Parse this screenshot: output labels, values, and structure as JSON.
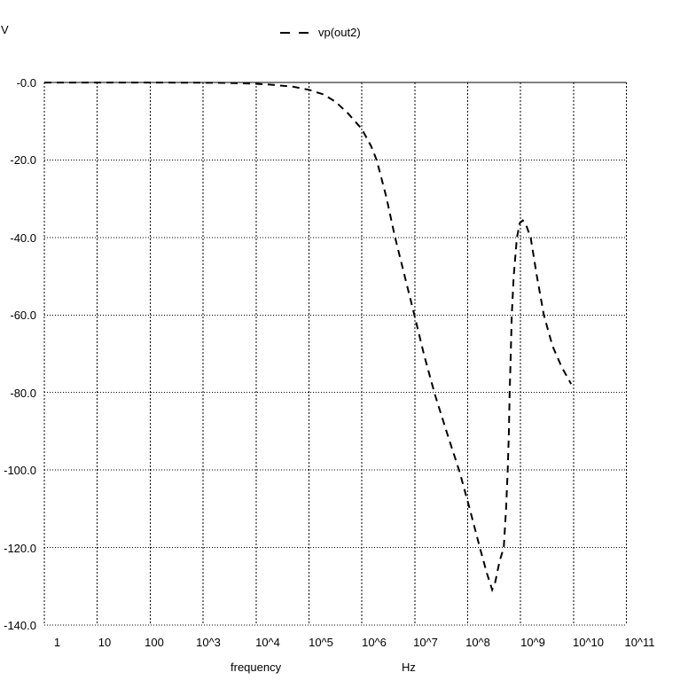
{
  "labels": {
    "y_unit": "V",
    "x_axis_name": "frequency",
    "x_unit": "Hz"
  },
  "legend": {
    "series_label": "vp(out2)"
  },
  "axes": {
    "y_tick_labels": [
      "-0.0",
      "-20.0",
      "-40.0",
      "-60.0",
      "-80.0",
      "-100.0",
      "-120.0",
      "-140.0"
    ],
    "x_tick_labels": [
      "1",
      "10",
      "100",
      "10^3",
      "10^4",
      "10^5",
      "10^6",
      "10^7",
      "10^8",
      "10^9",
      "10^10",
      "10^11"
    ]
  },
  "colors": {
    "foreground": "#000000",
    "background": "#ffffff"
  },
  "chart_data": {
    "type": "line",
    "title": "",
    "xlabel": "frequency",
    "x_unit": "Hz",
    "ylabel": "V",
    "x_scale": "log",
    "xlim": [
      1,
      100000000000.0
    ],
    "ylim": [
      -140,
      0
    ],
    "grid": true,
    "grid_style": "dotted",
    "zero_line": "solid",
    "legend_position": "top-center",
    "series": [
      {
        "name": "vp(out2)",
        "style": "dashed",
        "color": "#000000",
        "points": [
          [
            1,
            -0.02
          ],
          [
            10,
            -0.02
          ],
          [
            100,
            -0.03
          ],
          [
            1000,
            -0.06
          ],
          [
            3000,
            -0.12
          ],
          [
            10000,
            -0.35
          ],
          [
            20000,
            -0.6
          ],
          [
            50000,
            -1.1
          ],
          [
            100000,
            -1.9
          ],
          [
            190000,
            -3.1
          ],
          [
            320000,
            -5.0
          ],
          [
            550000,
            -8.0
          ],
          [
            1000000,
            -12.0
          ],
          [
            1500000,
            -16.5
          ],
          [
            1900000,
            -20.0
          ],
          [
            2900000,
            -29.5
          ],
          [
            4200000,
            -39.7
          ],
          [
            6500000,
            -50.2
          ],
          [
            10000000,
            -60.4
          ],
          [
            15000000,
            -70.3
          ],
          [
            24000000,
            -80.5
          ],
          [
            41000000,
            -90.6
          ],
          [
            70000000,
            -100.4
          ],
          [
            110000000,
            -110.2
          ],
          [
            170000000,
            -120.1
          ],
          [
            230000000,
            -126.6
          ],
          [
            290000000,
            -130.9
          ],
          [
            330000000,
            -129.0
          ],
          [
            400000000,
            -123.5
          ],
          [
            480000000,
            -120.0
          ],
          [
            530000000,
            -110.0
          ],
          [
            570000000,
            -100.4
          ],
          [
            600000000,
            -90.0
          ],
          [
            620000000,
            -80.5
          ],
          [
            650000000,
            -70.0
          ],
          [
            680000000,
            -60.2
          ],
          [
            740000000,
            -50.0
          ],
          [
            850000000,
            -40.1
          ],
          [
            960000000,
            -36.3
          ],
          [
            1100000000,
            -35.6
          ],
          [
            1250000000,
            -36.5
          ],
          [
            1550000000,
            -40.1
          ],
          [
            2000000000,
            -49.5
          ],
          [
            2750000000,
            -60.0
          ],
          [
            4000000000,
            -68.0
          ],
          [
            6000000000,
            -73.5
          ],
          [
            9000000000,
            -77.8
          ]
        ]
      }
    ]
  }
}
